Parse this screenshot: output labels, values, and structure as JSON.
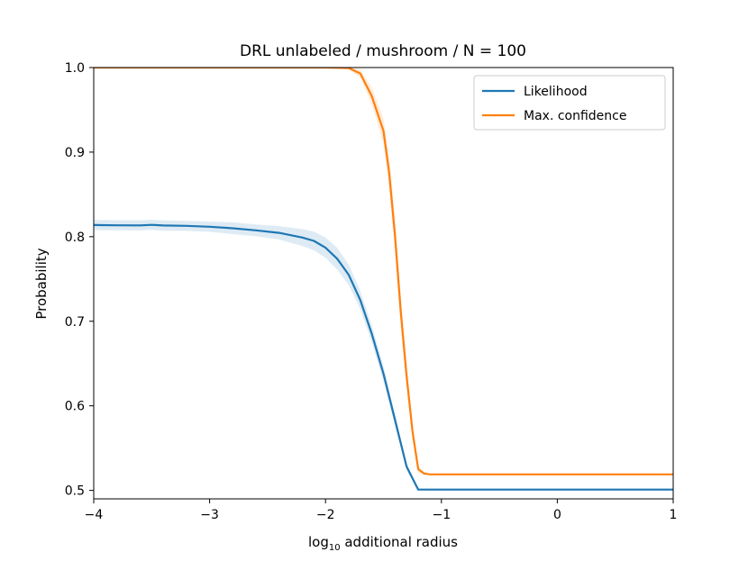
{
  "chart_data": {
    "type": "line",
    "title": "DRL unlabeled / mushroom / N = 100",
    "xlabel": "log10 additional radius",
    "xlabel_parts": {
      "base": "log",
      "subscript": "10",
      "rest": " additional radius"
    },
    "ylabel": "Probability",
    "xlim": [
      -4,
      1
    ],
    "ylim": [
      0.49,
      1.0
    ],
    "xticks": [
      -4,
      -3,
      -2,
      -1,
      0,
      1
    ],
    "xtick_labels": [
      "−4",
      "−3",
      "−2",
      "−1",
      "0",
      "1"
    ],
    "yticks": [
      0.5,
      0.6,
      0.7,
      0.8,
      0.9,
      1.0
    ],
    "ytick_labels": [
      "0.5",
      "0.6",
      "0.7",
      "0.8",
      "0.9",
      "1.0"
    ],
    "grid": false,
    "legend_position": "top-right",
    "series": [
      {
        "name": "Likelihood",
        "color": "#1f77b4",
        "x": [
          -4.0,
          -3.8,
          -3.6,
          -3.5,
          -3.4,
          -3.2,
          -3.0,
          -2.8,
          -2.6,
          -2.4,
          -2.2,
          -2.1,
          -2.0,
          -1.9,
          -1.8,
          -1.7,
          -1.6,
          -1.5,
          -1.4,
          -1.3,
          -1.2,
          -1.1,
          -1.0,
          -0.5,
          0.0,
          0.5,
          1.0
        ],
        "y": [
          0.8138,
          0.8135,
          0.8134,
          0.814,
          0.8132,
          0.8128,
          0.8118,
          0.81,
          0.8075,
          0.8045,
          0.799,
          0.795,
          0.787,
          0.774,
          0.755,
          0.725,
          0.685,
          0.638,
          0.583,
          0.528,
          0.501,
          0.501,
          0.501,
          0.501,
          0.501,
          0.501,
          0.501
        ],
        "band": [
          0.006,
          0.006,
          0.006,
          0.006,
          0.006,
          0.006,
          0.006,
          0.007,
          0.007,
          0.008,
          0.01,
          0.011,
          0.012,
          0.013,
          0.012,
          0.011,
          0.01,
          0.009,
          0.007,
          0.004,
          0.001,
          0.001,
          0.001,
          0.001,
          0.001,
          0.001,
          0.001
        ]
      },
      {
        "name": "Max. confidence",
        "color": "#ff7f0e",
        "x": [
          -4.0,
          -3.5,
          -3.0,
          -2.5,
          -2.0,
          -1.8,
          -1.7,
          -1.6,
          -1.5,
          -1.45,
          -1.4,
          -1.35,
          -1.3,
          -1.25,
          -1.2,
          -1.15,
          -1.1,
          -1.0,
          -0.5,
          0.0,
          0.5,
          1.0
        ],
        "y": [
          1.0,
          1.0,
          1.0,
          1.0,
          1.0,
          0.9995,
          0.993,
          0.966,
          0.925,
          0.875,
          0.8,
          0.71,
          0.635,
          0.57,
          0.525,
          0.52,
          0.519,
          0.519,
          0.519,
          0.519,
          0.519,
          0.519
        ],
        "band": [
          0.0,
          0.0,
          0.0,
          0.0,
          0.0,
          0.002,
          0.005,
          0.01,
          0.015,
          0.02,
          0.022,
          0.02,
          0.015,
          0.01,
          0.004,
          0.002,
          0.0,
          0.0,
          0.0,
          0.0,
          0.0,
          0.0
        ]
      }
    ]
  }
}
